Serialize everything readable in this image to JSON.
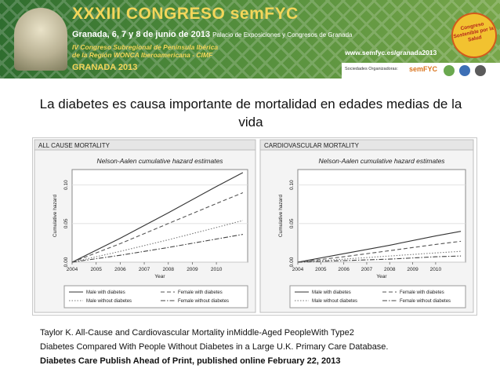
{
  "banner": {
    "congress_title": "XXXIII CONGRESO semFYC",
    "dates": "Granada, 6, 7 y 8 de junio de 2013",
    "venue": "Palacio de Exposiciones y Congresos de Granada",
    "subtitle_line1": "IV Congreso Subregional de Península Ibérica",
    "subtitle_line2": "de la Región WONCA Iberoamericana - CIMF",
    "city_year": "GRANADA 2013",
    "url": "www.semfyc.es/granada2013",
    "sponsors_label": "Sociedades Organizadoras:",
    "sponsor_logo_text": "semFYC",
    "badge_text": "Congreso Sostenible por la Salud",
    "colors": {
      "green": "#3f7d35",
      "gold": "#f3d65a",
      "orange": "#d9731c"
    }
  },
  "slide": {
    "title": "La diabetes es causa importante de mortalidad en edades medias de la vida"
  },
  "references": {
    "line1": "Taylor K. All-Cause and Cardiovascular Mortality inMiddle-Aged PeopleWith Type2",
    "line2": "Diabetes Compared With People Without  Diabetes in a Large U.K. Primary Care Database.",
    "line3": "Diabetes Care Publish Ahead of Print, published online February 22, 2013"
  },
  "chart_data": [
    {
      "type": "line",
      "panel_label": "ALL CAUSE MORTALITY",
      "title": "Nelson-Aalen cumulative hazard estimates",
      "xlabel": "Year",
      "ylabel": "Cumulative hazard",
      "x_ticks": [
        "2004",
        "2005",
        "2006",
        "2007",
        "2008",
        "2009",
        "2010"
      ],
      "y_ticks": [
        "0.00",
        "0.05",
        "0.10"
      ],
      "xlim": [
        2004,
        2011.3
      ],
      "ylim": [
        0,
        0.12
      ],
      "legend_position": "bottom",
      "series": [
        {
          "name": "Male with diabetes",
          "style": "solid",
          "x": [
            2004,
            2006,
            2008,
            2010,
            2011.1
          ],
          "y": [
            0,
            0.031,
            0.064,
            0.098,
            0.116
          ]
        },
        {
          "name": "Female with diabetes",
          "style": "dashed",
          "x": [
            2004,
            2006,
            2008,
            2010,
            2011.1
          ],
          "y": [
            0,
            0.024,
            0.05,
            0.076,
            0.09
          ]
        },
        {
          "name": "Male without diabetes",
          "style": "dotted",
          "x": [
            2004,
            2006,
            2008,
            2010,
            2011.1
          ],
          "y": [
            0,
            0.014,
            0.029,
            0.045,
            0.054
          ]
        },
        {
          "name": "Female without diabetes",
          "style": "dashdot",
          "x": [
            2004,
            2006,
            2008,
            2010,
            2011.1
          ],
          "y": [
            0,
            0.009,
            0.019,
            0.03,
            0.036
          ]
        }
      ]
    },
    {
      "type": "line",
      "panel_label": "CARDIOVASCULAR MORTALITY",
      "title": "Nelson-Aalen cumulative hazard estimates",
      "xlabel": "Year",
      "ylabel": "Cumulative hazard",
      "x_ticks": [
        "2004",
        "2005",
        "2006",
        "2007",
        "2008",
        "2009",
        "2010"
      ],
      "y_ticks": [
        "0.00",
        "0.05",
        "0.10"
      ],
      "xlim": [
        2004,
        2011.3
      ],
      "ylim": [
        0,
        0.12
      ],
      "legend_position": "bottom",
      "series": [
        {
          "name": "Male with diabetes",
          "style": "solid",
          "x": [
            2004,
            2006,
            2008,
            2010,
            2011.1
          ],
          "y": [
            0,
            0.011,
            0.022,
            0.034,
            0.04
          ]
        },
        {
          "name": "Female with diabetes",
          "style": "dashed",
          "x": [
            2004,
            2006,
            2008,
            2010,
            2011.1
          ],
          "y": [
            0,
            0.007,
            0.015,
            0.023,
            0.027
          ]
        },
        {
          "name": "Male without diabetes",
          "style": "dotted",
          "x": [
            2004,
            2006,
            2008,
            2010,
            2011.1
          ],
          "y": [
            0,
            0.004,
            0.008,
            0.012,
            0.014
          ]
        },
        {
          "name": "Female without diabetes",
          "style": "dashdot",
          "x": [
            2004,
            2006,
            2008,
            2010,
            2011.1
          ],
          "y": [
            0,
            0.002,
            0.004,
            0.007,
            0.008
          ]
        }
      ]
    }
  ]
}
